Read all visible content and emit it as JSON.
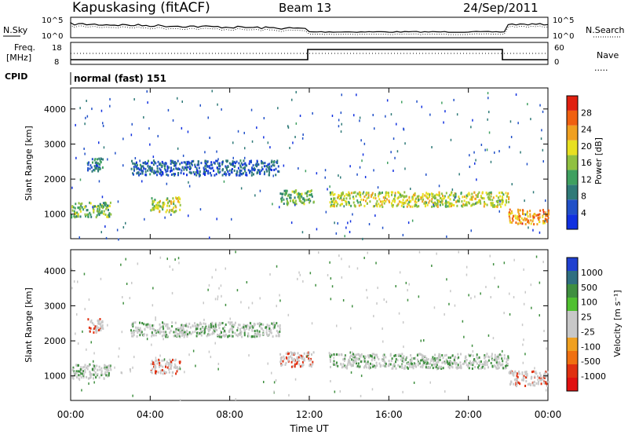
{
  "header": {
    "station": "Kapuskasing (fitACF)",
    "beam": "Beam 13",
    "date": "24/Sep/2011"
  },
  "noise_panel": {
    "left_label": "N.Sky",
    "right_label": "N.Search",
    "left_ticks": [
      "10^5",
      "10^0"
    ],
    "right_ticks": [
      "10^5",
      "10^0"
    ]
  },
  "freq_panel": {
    "left_label_1": "Freq.",
    "left_label_2": "[MHz]",
    "left_ticks": [
      "18",
      "8"
    ],
    "right_ticks": [
      "60",
      "0"
    ],
    "right_label": "Nave",
    "right_label_dots": "....."
  },
  "cpid": {
    "label": "CPID",
    "value": "normal (fast) 151"
  },
  "colors": {
    "power_scale": [
      "#1030e0",
      "#2050c8",
      "#2f7a78",
      "#3fa060",
      "#90c040",
      "#e8e020",
      "#f0a020",
      "#f06010",
      "#e02010"
    ],
    "velocity_scale": [
      "#2040d0",
      "#2f6f80",
      "#3f8f40",
      "#50c030",
      "#c8c8c8",
      "#c8c8c8",
      "#f0a020",
      "#f07010",
      "#e03010",
      "#e01010"
    ]
  },
  "chart_data": [
    {
      "type": "heatmap",
      "name_hint": "power",
      "ylabel": "Slant Range [km]",
      "yticks": [
        "1000",
        "2000",
        "3000",
        "4000"
      ],
      "ylim": [
        300,
        4600
      ],
      "colorbar_label": "Power [dB]",
      "colorbar_ticks": [
        "4",
        "8",
        "12",
        "16",
        "20",
        "24",
        "28"
      ],
      "colorbar_range": [
        0,
        32
      ],
      "structures": [
        {
          "from": 0.0,
          "to": 2.0,
          "range": 1150,
          "level": 14
        },
        {
          "from": 0.8,
          "to": 1.6,
          "range": 2450,
          "level": 8
        },
        {
          "from": 4.0,
          "to": 5.5,
          "range": 1300,
          "level": 18
        },
        {
          "from": 3.0,
          "to": 10.5,
          "range": 2350,
          "level": 6
        },
        {
          "from": 10.5,
          "to": 12.2,
          "range": 1500,
          "level": 14
        },
        {
          "from": 13.0,
          "to": 22.0,
          "range": 1450,
          "level": 18
        },
        {
          "from": 22.0,
          "to": 24.0,
          "range": 950,
          "level": 24
        }
      ]
    },
    {
      "type": "heatmap",
      "name_hint": "velocity",
      "ylabel": "Slant Range [km]",
      "yticks": [
        "1000",
        "2000",
        "3000",
        "4000"
      ],
      "ylim": [
        300,
        4600
      ],
      "xlabel": "Time UT",
      "xticks": [
        "00:00",
        "04:00",
        "08:00",
        "12:00",
        "16:00",
        "20:00",
        "00:00"
      ],
      "colorbar_label": "Velocity [m s⁻¹]",
      "colorbar_ticks": [
        "1000",
        "500",
        "100",
        "25",
        "-25",
        "-100",
        "-500",
        "-1000"
      ],
      "structures": [
        {
          "from": 0.0,
          "to": 2.0,
          "range": 1150,
          "velocity": 0
        },
        {
          "from": 0.8,
          "to": 1.6,
          "range": 2450,
          "velocity": -300
        },
        {
          "from": 4.0,
          "to": 5.5,
          "range": 1300,
          "velocity": -200
        },
        {
          "from": 3.0,
          "to": 10.5,
          "range": 2350,
          "velocity": 0
        },
        {
          "from": 10.5,
          "to": 12.2,
          "range": 1500,
          "velocity": -150
        },
        {
          "from": 13.0,
          "to": 22.0,
          "range": 1450,
          "velocity": 0
        },
        {
          "from": 22.0,
          "to": 24.0,
          "range": 950,
          "velocity": -50
        }
      ]
    }
  ]
}
